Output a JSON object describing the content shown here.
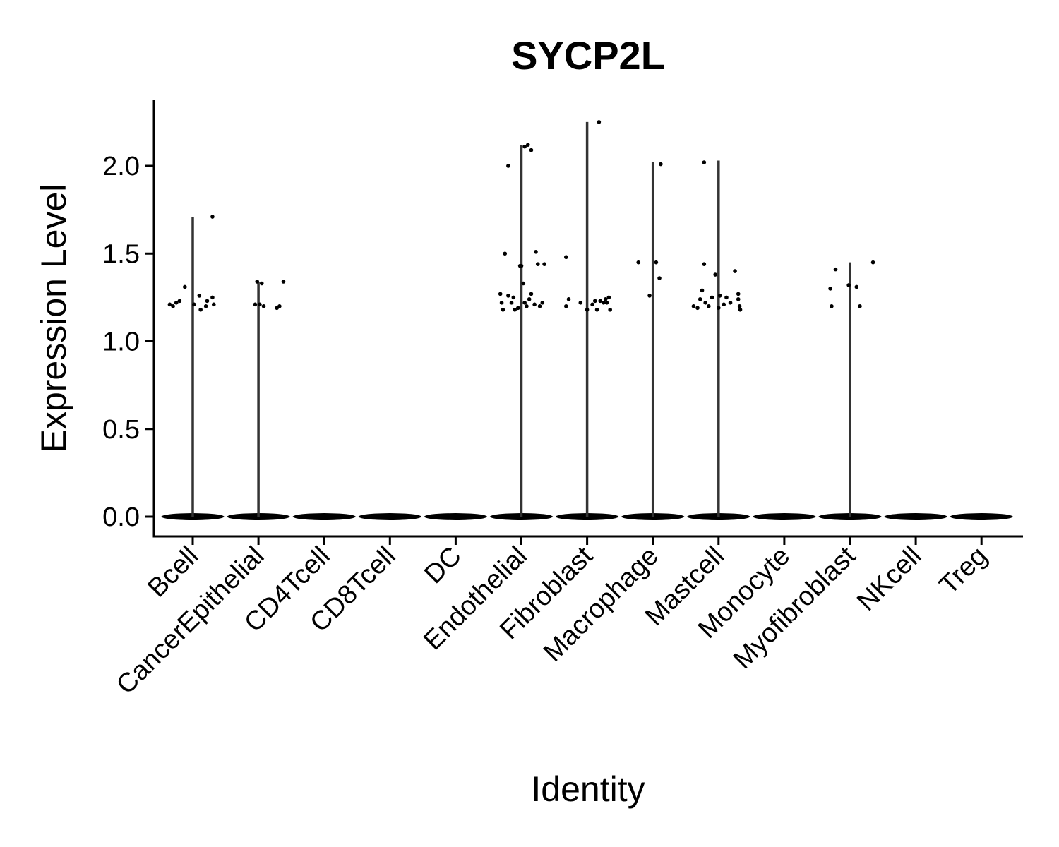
{
  "chart_data": {
    "type": "violin",
    "title": "SYCP2L",
    "xlabel": "Identity",
    "ylabel": "Expression Level",
    "ylim": [
      -0.11,
      2.37
    ],
    "yticks": [
      0.0,
      0.5,
      1.0,
      1.5,
      2.0
    ],
    "ytick_labels": [
      "0.0",
      "0.5",
      "1.0",
      "1.5",
      "2.0"
    ],
    "categories": [
      "Bcell",
      "CancerEpithelial",
      "CD4Tcell",
      "CD8Tcell",
      "DC",
      "Endothelial",
      "Fibroblast",
      "Macrophage",
      "Mastcell",
      "Monocyte",
      "Myofibroblast",
      "NKcell",
      "Treg"
    ],
    "violin_max": [
      1.71,
      1.34,
      0,
      0,
      0,
      2.12,
      2.25,
      2.02,
      2.03,
      0,
      1.45,
      0,
      0
    ],
    "points": [
      [
        [
          -0.35,
          1.21
        ],
        [
          -0.3,
          1.2
        ],
        [
          -0.25,
          1.22
        ],
        [
          -0.2,
          1.23
        ],
        [
          -0.12,
          1.31
        ],
        [
          0.02,
          1.21
        ],
        [
          0.1,
          1.26
        ],
        [
          0.12,
          1.18
        ],
        [
          0.2,
          1.2
        ],
        [
          0.22,
          1.23
        ],
        [
          0.3,
          1.25
        ],
        [
          0.32,
          1.21
        ],
        [
          0.3,
          1.71
        ]
      ],
      [
        [
          -0.02,
          1.34
        ],
        [
          0.02,
          1.21
        ],
        [
          0.05,
          1.33
        ],
        [
          0.08,
          1.2
        ],
        [
          0.28,
          1.19
        ],
        [
          0.32,
          1.2
        ],
        [
          0.38,
          1.34
        ],
        [
          -0.05,
          1.21
        ]
      ],
      [],
      [],
      [],
      [
        [
          -0.32,
          1.27
        ],
        [
          -0.3,
          1.22
        ],
        [
          -0.28,
          1.18
        ],
        [
          -0.25,
          1.5
        ],
        [
          -0.2,
          1.26
        ],
        [
          -0.15,
          1.22
        ],
        [
          -0.12,
          1.25
        ],
        [
          -0.05,
          1.19
        ],
        [
          -0.02,
          1.43
        ],
        [
          0.0,
          1.43
        ],
        [
          0.03,
          1.33
        ],
        [
          0.05,
          1.22
        ],
        [
          0.08,
          1.2
        ],
        [
          0.12,
          1.24
        ],
        [
          0.15,
          1.27
        ],
        [
          0.2,
          1.21
        ],
        [
          0.22,
          1.51
        ],
        [
          0.25,
          1.44
        ],
        [
          0.28,
          1.2
        ],
        [
          0.35,
          1.44
        ],
        [
          0.32,
          1.22
        ],
        [
          -0.2,
          2.0
        ],
        [
          0.1,
          2.12
        ],
        [
          0.15,
          2.09
        ],
        [
          0.05,
          2.11
        ],
        [
          -0.1,
          1.18
        ]
      ],
      [
        [
          -0.32,
          1.48
        ],
        [
          -0.32,
          1.2
        ],
        [
          -0.28,
          1.24
        ],
        [
          -0.1,
          1.22
        ],
        [
          0.0,
          1.18
        ],
        [
          0.08,
          1.21
        ],
        [
          0.15,
          1.18
        ],
        [
          0.2,
          1.23
        ],
        [
          0.25,
          1.22
        ],
        [
          0.28,
          1.24
        ],
        [
          0.3,
          1.22
        ],
        [
          0.33,
          1.25
        ],
        [
          0.35,
          1.18
        ],
        [
          0.12,
          1.23
        ],
        [
          0.18,
          2.25
        ]
      ],
      [
        [
          -0.22,
          1.45
        ],
        [
          -0.05,
          1.26
        ],
        [
          0.05,
          1.45
        ],
        [
          0.1,
          1.36
        ],
        [
          0.12,
          2.01
        ]
      ],
      [
        [
          -0.38,
          1.2
        ],
        [
          -0.32,
          1.19
        ],
        [
          -0.28,
          1.24
        ],
        [
          -0.25,
          1.29
        ],
        [
          -0.22,
          1.44
        ],
        [
          -0.2,
          1.22
        ],
        [
          -0.15,
          1.2
        ],
        [
          -0.1,
          1.25
        ],
        [
          -0.05,
          1.38
        ],
        [
          0.0,
          1.19
        ],
        [
          0.02,
          1.26
        ],
        [
          0.08,
          1.21
        ],
        [
          0.12,
          1.25
        ],
        [
          0.18,
          1.22
        ],
        [
          0.25,
          1.4
        ],
        [
          0.3,
          1.27
        ],
        [
          0.32,
          1.2
        ],
        [
          0.33,
          1.18
        ],
        [
          0.3,
          1.24
        ],
        [
          -0.22,
          2.02
        ]
      ],
      [],
      [
        [
          -0.3,
          1.3
        ],
        [
          -0.28,
          1.2
        ],
        [
          -0.22,
          1.41
        ],
        [
          -0.02,
          1.32
        ],
        [
          0.1,
          1.31
        ],
        [
          0.15,
          1.2
        ],
        [
          0.35,
          1.45
        ]
      ],
      [],
      []
    ]
  }
}
